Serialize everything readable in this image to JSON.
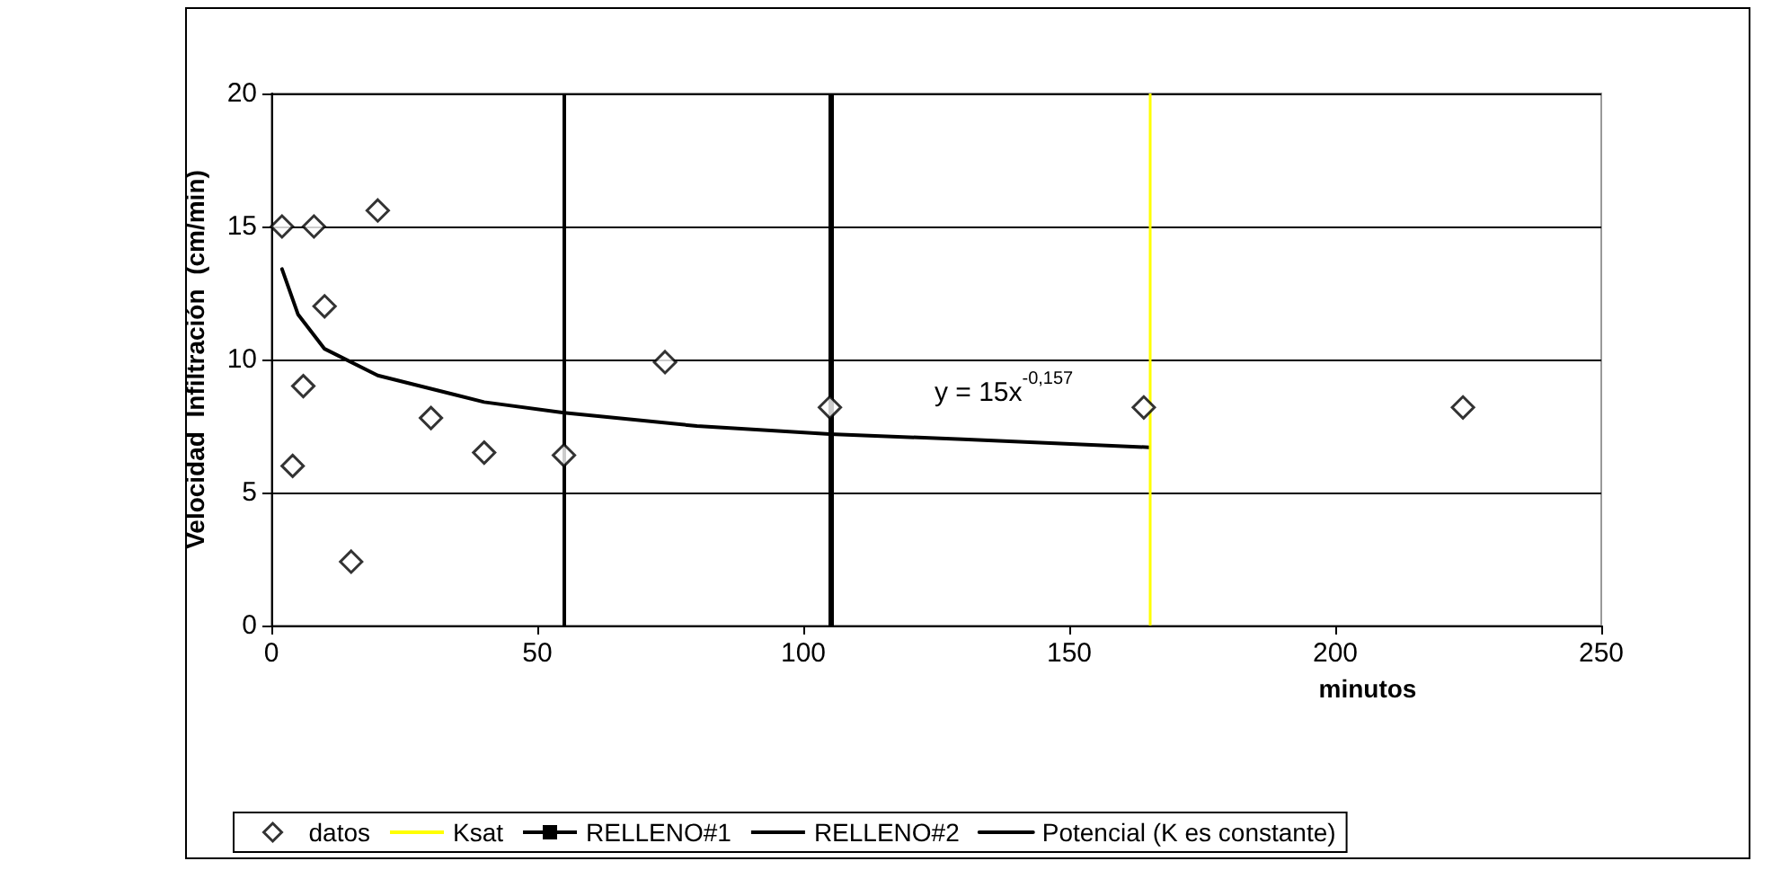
{
  "chart_data": {
    "type": "scatter",
    "xlabel": "minutos",
    "ylabel": "Velocidad  Infiltración  (cm/min)",
    "xlim": [
      0,
      250
    ],
    "xticks": [
      0,
      50,
      100,
      150,
      200,
      250
    ],
    "ylim": [
      0,
      20
    ],
    "yticks": [
      0,
      5,
      10,
      15,
      20
    ],
    "grid": "y",
    "legend": "bottom",
    "marker": "diamond",
    "series": [
      {
        "name": "datos",
        "type": "scatter",
        "color": "#000000",
        "x": [
          2,
          4,
          6,
          8,
          10,
          15,
          20,
          30,
          40,
          55,
          74,
          105,
          164,
          224
        ],
        "values": [
          15,
          6,
          9,
          15,
          12,
          2.4,
          15.6,
          7.8,
          6.5,
          6.4,
          9.9,
          8.2,
          8.2,
          8.2
        ]
      },
      {
        "name": "Potencial (K es constante)",
        "type": "line",
        "marker": "none",
        "color": "#000000",
        "x": [
          2,
          5,
          10,
          20,
          40,
          55,
          80,
          105,
          130,
          165
        ],
        "values": [
          13.4,
          11.7,
          10.4,
          9.4,
          8.4,
          8.0,
          7.5,
          7.2,
          7.0,
          6.7
        ]
      }
    ],
    "ref_lines": [
      {
        "axis": "x",
        "value": 165,
        "label": "Ksat",
        "color": "#ffff00",
        "line_style": "solid"
      },
      {
        "axis": "x",
        "value": 55,
        "label": "RELLENO#1",
        "color": "#000000",
        "line_style": "solid"
      },
      {
        "axis": "x",
        "value": 105,
        "label": "RELLENO#2",
        "color": "#000000",
        "line_style": "solid"
      }
    ],
    "annotations": [
      "y = 15x$^{-0,157}$"
    ]
  }
}
